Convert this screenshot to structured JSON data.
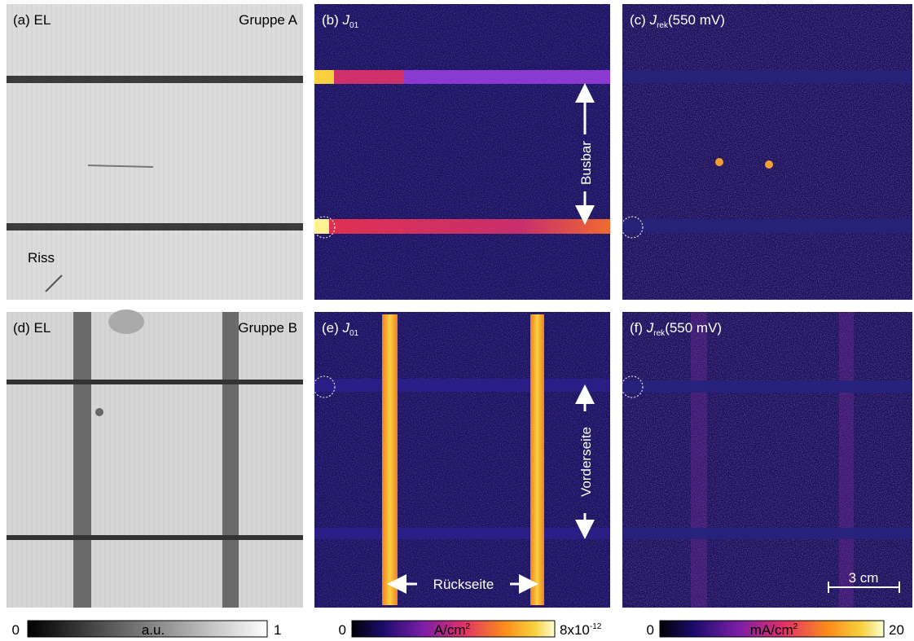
{
  "panels": [
    {
      "label": "(a) EL",
      "group": "Gruppe A",
      "annotation": "Riss"
    },
    {
      "label_prefix": "(b)",
      "symbol": "J",
      "subscript": "01"
    },
    {
      "label_prefix": "(c)",
      "symbol": "J",
      "subscript": "rek",
      "suffix": "(550 mV)"
    },
    {
      "label": "(d) EL",
      "group": "Gruppe B"
    },
    {
      "label_prefix": "(e)",
      "symbol": "J",
      "subscript": "01"
    },
    {
      "label_prefix": "(f)",
      "symbol": "J",
      "subscript": "rek",
      "suffix": "(550 mV)"
    }
  ],
  "annotations": {
    "busbar": "Busbar",
    "front": "Vorderseite",
    "back": "Rückseite",
    "scale": "3 cm"
  },
  "colorbars": [
    {
      "min": "0",
      "unit": "a.u.",
      "max": "1"
    },
    {
      "min": "0",
      "unit": "A/cm",
      "unit_sup": "2",
      "max": "8x10",
      "max_sup": "-12"
    },
    {
      "min": "0",
      "unit": "mA/cm",
      "unit_sup": "2",
      "max": "20"
    }
  ]
}
